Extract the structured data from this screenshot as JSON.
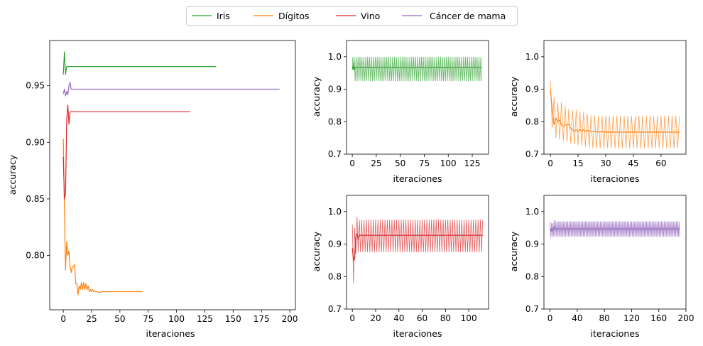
{
  "legend": {
    "entries": [
      {
        "label": "Iris",
        "color": "#2ca02c"
      },
      {
        "label": "Dígitos",
        "color": "#ff7f0e"
      },
      {
        "label": "Vino",
        "color": "#d62728"
      },
      {
        "label": "Cáncer de mama",
        "color": "#9467bd"
      }
    ],
    "placement": "top-center"
  },
  "chart_data": [
    {
      "type": "line",
      "panel": "main",
      "xlabel": "iteraciones",
      "ylabel": "accuracy",
      "xlim": [
        -12,
        205
      ],
      "ylim": [
        0.752,
        0.99
      ],
      "xticks": [
        0,
        25,
        50,
        75,
        100,
        125,
        150,
        175,
        200
      ],
      "yticks": [
        0.8,
        0.85,
        0.9,
        0.95
      ],
      "ytick_labels": [
        "0.80",
        "0.85",
        "0.90",
        "0.95"
      ],
      "series": [
        {
          "name": "Iris",
          "color": "#2ca02c",
          "x": [
            0,
            1,
            2,
            3,
            4,
            135
          ],
          "y": [
            0.96,
            0.98,
            0.96,
            0.967,
            0.967,
            0.967
          ]
        },
        {
          "name": "Dígitos",
          "color": "#ff7f0e",
          "x": [
            0,
            1,
            2,
            3,
            4,
            5,
            6,
            7,
            8,
            9,
            10,
            11,
            12,
            13,
            14,
            15,
            16,
            17,
            18,
            19,
            20,
            21,
            22,
            23,
            24,
            25,
            26,
            27,
            28,
            29,
            30,
            32,
            34,
            40,
            50,
            60,
            70
          ],
          "y": [
            0.903,
            0.84,
            0.787,
            0.812,
            0.8,
            0.804,
            0.79,
            0.785,
            0.79,
            0.79,
            0.792,
            0.775,
            0.775,
            0.765,
            0.773,
            0.77,
            0.776,
            0.77,
            0.776,
            0.77,
            0.775,
            0.77,
            0.773,
            0.768,
            0.77,
            0.768,
            0.77,
            0.768,
            0.768,
            0.768,
            0.768,
            0.767,
            0.768,
            0.768,
            0.768,
            0.768,
            0.768
          ]
        },
        {
          "name": "Vino",
          "color": "#d62728",
          "x": [
            0,
            1,
            2,
            3,
            4,
            5,
            6,
            7,
            8,
            112
          ],
          "y": [
            0.887,
            0.85,
            0.855,
            0.92,
            0.933,
            0.916,
            0.927,
            0.927,
            0.927,
            0.927
          ]
        },
        {
          "name": "Cáncer de mama",
          "color": "#9467bd",
          "x": [
            0,
            1,
            2,
            3,
            4,
            5,
            6,
            7,
            8,
            191
          ],
          "y": [
            0.943,
            0.947,
            0.941,
            0.945,
            0.942,
            0.95,
            0.953,
            0.947,
            0.947,
            0.947
          ]
        }
      ]
    },
    {
      "type": "area",
      "panel": "iris",
      "color": "#2ca02c",
      "xlabel": "iteraciones",
      "ylabel": "accuracy",
      "xlim": [
        -6,
        142
      ],
      "ylim": [
        0.7,
        1.05
      ],
      "xticks": [
        0,
        25,
        50,
        75,
        100,
        125
      ],
      "yticks": [
        0.7,
        0.8,
        0.9,
        1.0
      ],
      "ytick_labels": [
        "0.7",
        "0.8",
        "0.9",
        "1.0"
      ],
      "n": 135,
      "mean": 0.967,
      "upper": 1.0,
      "lower": 0.925,
      "initial": {
        "x": [
          0,
          1,
          2,
          3
        ],
        "mean": [
          0.96,
          0.98,
          0.96,
          0.967
        ],
        "lower": [
          0.93,
          0.96,
          0.92,
          0.925
        ]
      }
    },
    {
      "type": "area",
      "panel": "digitos",
      "color": "#ff7f0e",
      "xlabel": "iteraciones",
      "ylabel": "accuracy",
      "xlim": [
        -3.5,
        73.5
      ],
      "ylim": [
        0.7,
        1.05
      ],
      "xticks": [
        0,
        15,
        30,
        45,
        60
      ],
      "yticks": [
        0.7,
        0.8,
        0.9,
        1.0
      ],
      "ytick_labels": [
        "0.7",
        "0.8",
        "0.9",
        "1.0"
      ],
      "n": 70,
      "mean_x": [
        0,
        1,
        2,
        3,
        4,
        5,
        6,
        7,
        8,
        9,
        10,
        11,
        12,
        13,
        14,
        15,
        16,
        17,
        18,
        19,
        20,
        22,
        24,
        26,
        28,
        30,
        40,
        50,
        60,
        70
      ],
      "mean_y": [
        0.9,
        0.84,
        0.79,
        0.81,
        0.8,
        0.805,
        0.79,
        0.785,
        0.79,
        0.79,
        0.792,
        0.78,
        0.775,
        0.77,
        0.775,
        0.77,
        0.776,
        0.772,
        0.775,
        0.77,
        0.773,
        0.77,
        0.77,
        0.768,
        0.769,
        0.768,
        0.768,
        0.768,
        0.768,
        0.768
      ],
      "upper_x": [
        0,
        1,
        2,
        4,
        6,
        8,
        10,
        12,
        14,
        16,
        18,
        20,
        22,
        24,
        26,
        70
      ],
      "upper_y": [
        0.925,
        0.9,
        0.875,
        0.86,
        0.86,
        0.85,
        0.84,
        0.835,
        0.835,
        0.83,
        0.83,
        0.825,
        0.82,
        0.82,
        0.818,
        0.818
      ],
      "lower_x": [
        0,
        1,
        2,
        4,
        6,
        8,
        10,
        12,
        14,
        16,
        18,
        20,
        22,
        24,
        26,
        70
      ],
      "lower_y": [
        0.86,
        0.78,
        0.75,
        0.75,
        0.74,
        0.74,
        0.735,
        0.73,
        0.73,
        0.725,
        0.725,
        0.72,
        0.72,
        0.718,
        0.718,
        0.718
      ]
    },
    {
      "type": "area",
      "panel": "vino",
      "color": "#d62728",
      "xlabel": "iteraciones",
      "ylabel": "accuracy",
      "xlim": [
        -5,
        117
      ],
      "ylim": [
        0.7,
        1.05
      ],
      "xticks": [
        0,
        20,
        40,
        60,
        80,
        100
      ],
      "yticks": [
        0.7,
        0.8,
        0.9,
        1.0
      ],
      "ytick_labels": [
        "0.7",
        "0.8",
        "0.9",
        "1.0"
      ],
      "n": 112,
      "mean": 0.927,
      "upper": 0.975,
      "lower": 0.875,
      "initial": {
        "x": [
          0,
          1,
          2,
          3,
          4,
          5,
          6
        ],
        "mean": [
          0.887,
          0.85,
          0.855,
          0.92,
          0.933,
          0.916,
          0.927
        ],
        "lower": [
          0.8,
          0.78,
          0.84,
          0.87,
          0.87,
          0.875,
          0.875
        ],
        "upper": [
          0.96,
          0.92,
          0.95,
          0.97,
          0.985,
          0.975,
          0.975
        ]
      }
    },
    {
      "type": "area",
      "panel": "cancer",
      "color": "#9467bd",
      "xlabel": "iteraciones",
      "ylabel": "accuracy",
      "xlim": [
        -9,
        200
      ],
      "ylim": [
        0.7,
        1.05
      ],
      "xticks": [
        0,
        40,
        80,
        120,
        160,
        200
      ],
      "yticks": [
        0.7,
        0.8,
        0.9,
        1.0
      ],
      "ytick_labels": [
        "0.7",
        "0.8",
        "0.9",
        "1.0"
      ],
      "n": 191,
      "mean": 0.947,
      "upper": 0.97,
      "lower": 0.923,
      "initial": {
        "x": [
          0,
          1,
          2,
          3,
          4,
          5,
          6,
          7,
          8,
          9,
          10
        ],
        "mean": [
          0.943,
          0.947,
          0.941,
          0.945,
          0.942,
          0.95,
          0.953,
          0.947,
          0.947,
          0.947,
          0.947
        ],
        "lower": [
          0.915,
          0.92,
          0.912,
          0.92,
          0.915,
          0.925,
          0.93,
          0.923,
          0.923,
          0.923,
          0.923
        ],
        "upper": [
          0.97,
          0.972,
          0.965,
          0.97,
          0.965,
          0.975,
          0.975,
          0.97,
          0.97,
          0.97,
          0.97
        ]
      }
    }
  ]
}
